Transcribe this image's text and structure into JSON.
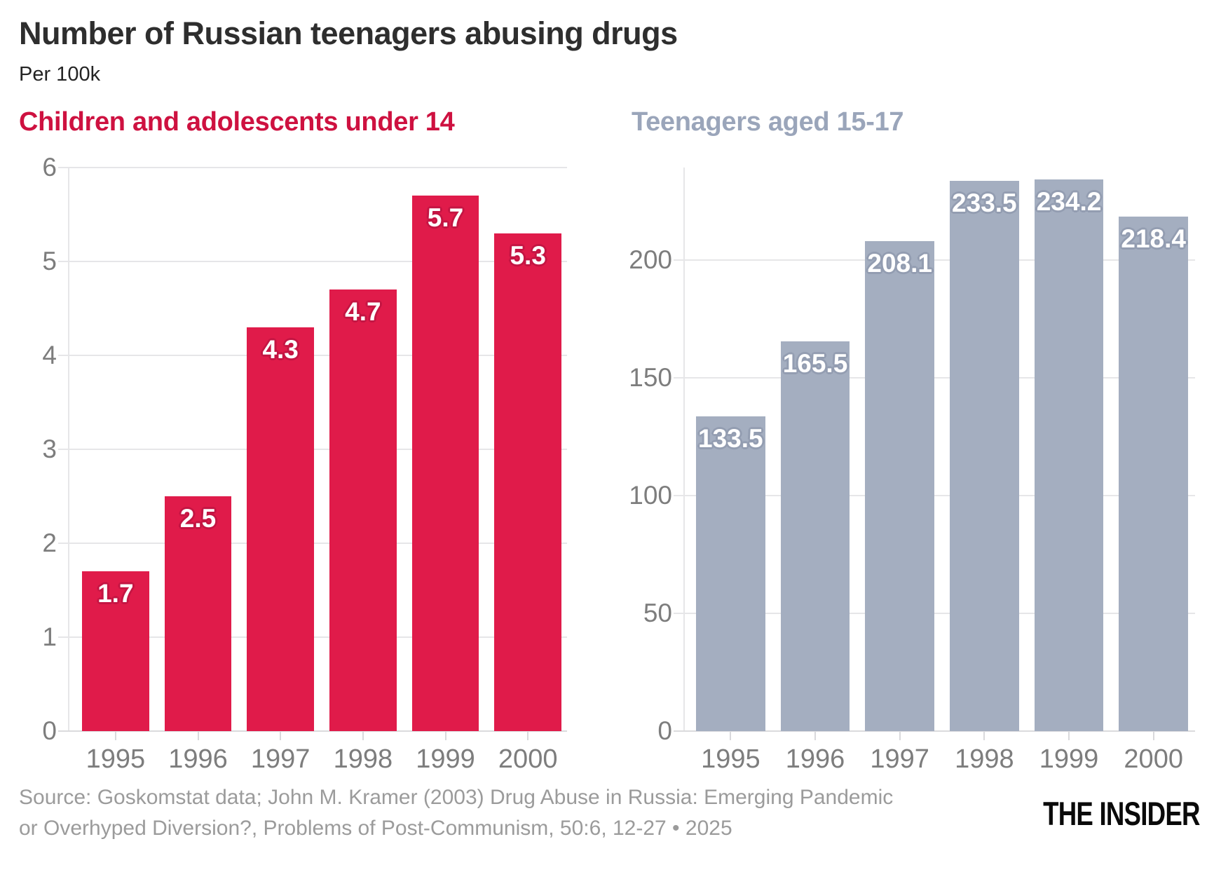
{
  "header": {
    "title": "Number of Russian teenagers abusing drugs",
    "subtitle": "Per 100k"
  },
  "chart_data": [
    {
      "type": "bar",
      "title": "Children and adolescents under 14",
      "categories": [
        "1995",
        "1996",
        "1997",
        "1998",
        "1999",
        "2000"
      ],
      "values": [
        1.7,
        2.5,
        4.3,
        4.7,
        5.7,
        5.3
      ],
      "xlabel": "",
      "ylabel": "",
      "ylim": [
        0,
        6
      ],
      "yticks": [
        0,
        1,
        2,
        3,
        4,
        5,
        6
      ],
      "grid": true,
      "legend_position": "none",
      "value_labels": "inside-top",
      "bar_color": "#e01b4a",
      "label_halo_color": "#c41543",
      "heading_color": "#ce1140"
    },
    {
      "type": "bar",
      "title": "Teenagers aged 15-17",
      "categories": [
        "1995",
        "1996",
        "1997",
        "1998",
        "1999",
        "2000"
      ],
      "values": [
        133.5,
        165.5,
        208.1,
        233.5,
        234.2,
        218.4
      ],
      "xlabel": "",
      "ylabel": "",
      "ylim": [
        0,
        239.3
      ],
      "yticks": [
        0,
        50,
        100,
        150,
        200
      ],
      "grid": true,
      "legend_position": "none",
      "value_labels": "inside-top",
      "bar_color": "#a4aec0",
      "label_halo_color": "#939db1",
      "heading_color": "#9aa5ba"
    }
  ],
  "footer": {
    "source_line1": "Source: Goskomstat data; John M. Kramer (2003) Drug Abuse in Russia: Emerging Pandemic",
    "source_line2": "or Overhyped Diversion?, Problems of Post-Communism, 50:6, 12-27 • 2025",
    "logo": "THE INSIDER"
  }
}
